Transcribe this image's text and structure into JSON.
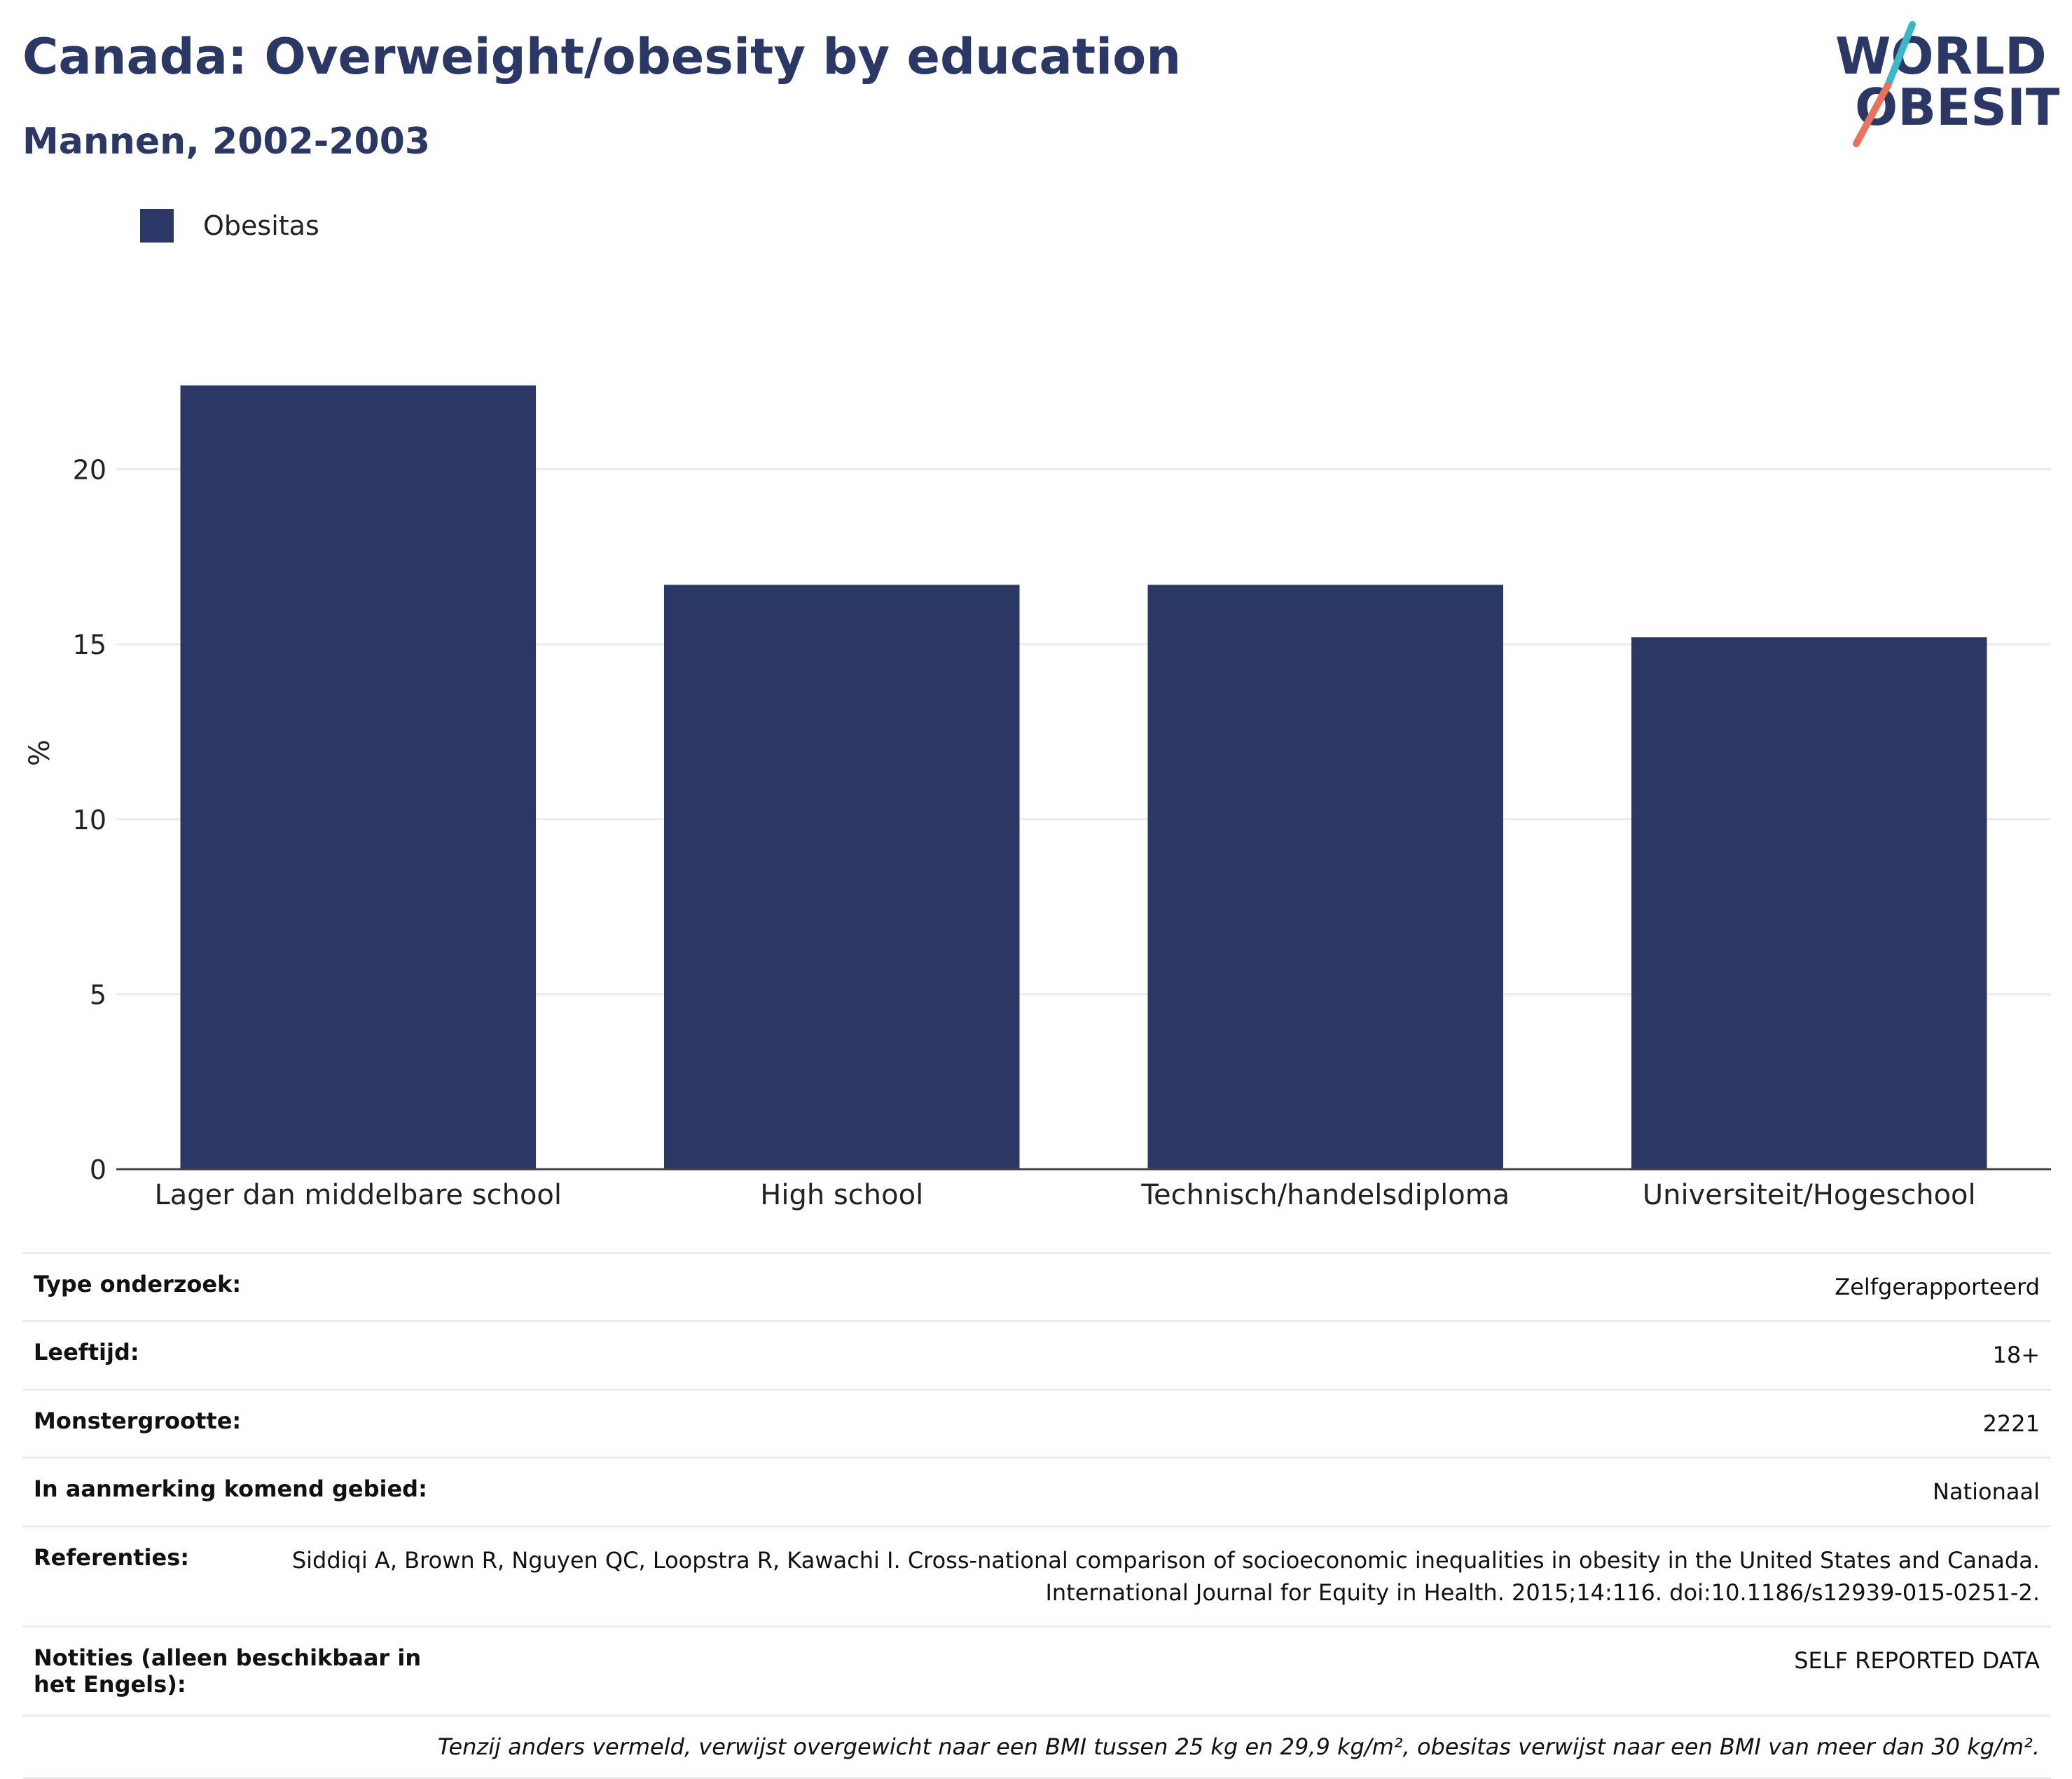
{
  "header": {
    "title": "Canada: Overweight/obesity by education",
    "subtitle": "Mannen, 2002-2003"
  },
  "logo": {
    "line1": "WORLD",
    "line2": "OBESITY"
  },
  "colors": {
    "bar": "#2b3764",
    "logo_teal": "#3bb8c4",
    "logo_coral": "#e8725c"
  },
  "chart_data": {
    "type": "bar",
    "categories": [
      "Lager dan middelbare school",
      "High school",
      "Technisch/handelsdiploma",
      "Universiteit/Hogeschool"
    ],
    "series": [
      {
        "name": "Obesitas",
        "values": [
          22.4,
          16.7,
          16.7,
          15.2
        ]
      }
    ],
    "title": "Canada: Overweight/obesity by education",
    "subtitle": "Mannen, 2002-2003",
    "xlabel": "",
    "ylabel": "%",
    "ylim": [
      0,
      25
    ],
    "yticks": [
      0,
      5,
      10,
      15,
      20
    ],
    "grid": true,
    "legend": "top-left"
  },
  "info": {
    "rows": [
      {
        "label": "Type onderzoek:",
        "value": "Zelfgerapporteerd"
      },
      {
        "label": "Leeftijd:",
        "value": "18+"
      },
      {
        "label": "Monstergrootte:",
        "value": "2221"
      },
      {
        "label": "In aanmerking komend gebied:",
        "value": "Nationaal"
      },
      {
        "label": "Referenties:",
        "value": "Siddiqi A, Brown R, Nguyen QC, Loopstra R, Kawachi I. Cross-national comparison of socioeconomic inequalities in obesity in the United States and Canada. International Journal for Equity in Health. 2015;14:116. doi:10.1186/s12939-015-0251-2."
      },
      {
        "label": "Notities (alleen beschikbaar in het Engels):",
        "value": "SELF REPORTED DATA"
      }
    ],
    "footnote": "Tenzij anders vermeld, verwijst overgewicht naar een BMI tussen 25 kg en 29,9 kg/m², obesitas verwijst naar een BMI van meer dan 30 kg/m²."
  }
}
